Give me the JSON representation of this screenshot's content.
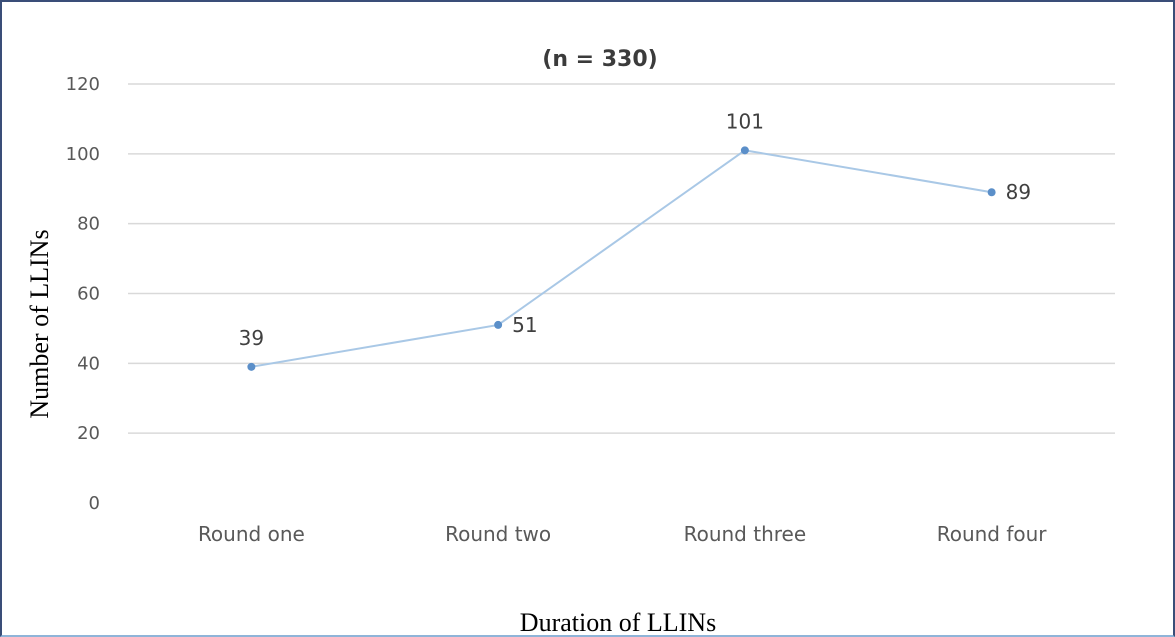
{
  "chart_data": {
    "type": "line",
    "title": "(n = 330)",
    "xlabel": "Duration of LLINs",
    "ylabel": "Number of LLINs",
    "categories": [
      "Round one",
      "Round two",
      "Round three",
      "Round four"
    ],
    "series": [
      {
        "values": [
          39,
          51,
          101,
          89
        ]
      }
    ],
    "ylim": [
      0,
      120
    ],
    "yticks": [
      0,
      20,
      40,
      60,
      80,
      100,
      120
    ],
    "grid": true,
    "data_labels": true,
    "colors": {
      "line": "#a9c8e6",
      "marker": "#5b8fc9",
      "grid": "#d9d9d9"
    }
  }
}
